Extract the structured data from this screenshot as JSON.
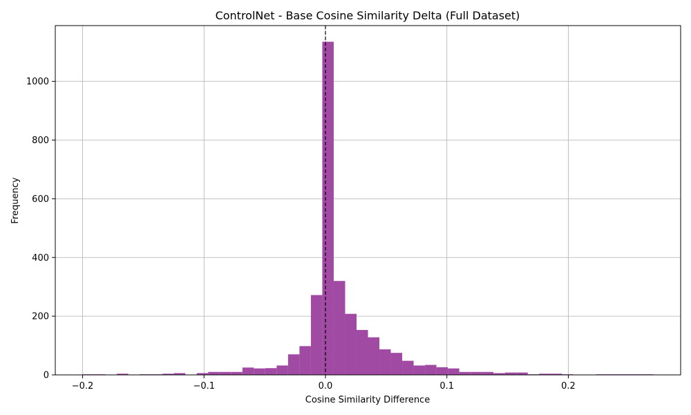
{
  "chart_data": {
    "type": "bar",
    "title": "ControlNet - Base Cosine Similarity Delta (Full Dataset)",
    "xlabel": "Cosine Similarity Difference",
    "ylabel": "Frequency",
    "xlim": [
      -0.2225,
      0.2925
    ],
    "ylim": [
      0,
      1190
    ],
    "grid": true,
    "bar_color": "#a04aa4",
    "reference_line_x": 0.0,
    "bin_width": 0.0094,
    "x_ticks": [
      {
        "value": -0.2,
        "label": "−0.2"
      },
      {
        "value": -0.1,
        "label": "−0.1"
      },
      {
        "value": 0.0,
        "label": "0.0"
      },
      {
        "value": 0.1,
        "label": "0.1"
      },
      {
        "value": 0.2,
        "label": "0.2"
      }
    ],
    "y_ticks": [
      {
        "value": 0,
        "label": "0"
      },
      {
        "value": 200,
        "label": "200"
      },
      {
        "value": 400,
        "label": "400"
      },
      {
        "value": 600,
        "label": "600"
      },
      {
        "value": 800,
        "label": "800"
      },
      {
        "value": 1000,
        "label": "1000"
      }
    ],
    "bins": [
      {
        "x0": -0.2,
        "count": 2
      },
      {
        "x0": -0.1906,
        "count": 2
      },
      {
        "x0": -0.1812,
        "count": 0
      },
      {
        "x0": -0.1718,
        "count": 4
      },
      {
        "x0": -0.1624,
        "count": 0
      },
      {
        "x0": -0.153,
        "count": 2
      },
      {
        "x0": -0.1436,
        "count": 2
      },
      {
        "x0": -0.1342,
        "count": 4
      },
      {
        "x0": -0.1248,
        "count": 6
      },
      {
        "x0": -0.1154,
        "count": 0
      },
      {
        "x0": -0.106,
        "count": 6
      },
      {
        "x0": -0.0966,
        "count": 10
      },
      {
        "x0": -0.0872,
        "count": 10
      },
      {
        "x0": -0.0778,
        "count": 10
      },
      {
        "x0": -0.0684,
        "count": 25
      },
      {
        "x0": -0.059,
        "count": 22
      },
      {
        "x0": -0.0496,
        "count": 23
      },
      {
        "x0": -0.0402,
        "count": 32
      },
      {
        "x0": -0.0308,
        "count": 70
      },
      {
        "x0": -0.0214,
        "count": 98
      },
      {
        "x0": -0.012,
        "count": 272
      },
      {
        "x0": -0.0026,
        "count": 1135
      },
      {
        "x0": 0.0068,
        "count": 320
      },
      {
        "x0": 0.0162,
        "count": 208
      },
      {
        "x0": 0.0256,
        "count": 153
      },
      {
        "x0": 0.035,
        "count": 128
      },
      {
        "x0": 0.0444,
        "count": 87
      },
      {
        "x0": 0.0538,
        "count": 75
      },
      {
        "x0": 0.0632,
        "count": 48
      },
      {
        "x0": 0.0726,
        "count": 32
      },
      {
        "x0": 0.082,
        "count": 34
      },
      {
        "x0": 0.0914,
        "count": 26
      },
      {
        "x0": 0.1008,
        "count": 22
      },
      {
        "x0": 0.1102,
        "count": 10
      },
      {
        "x0": 0.1196,
        "count": 10
      },
      {
        "x0": 0.129,
        "count": 10
      },
      {
        "x0": 0.1384,
        "count": 6
      },
      {
        "x0": 0.1478,
        "count": 8
      },
      {
        "x0": 0.1572,
        "count": 8
      },
      {
        "x0": 0.1666,
        "count": 2
      },
      {
        "x0": 0.176,
        "count": 4
      },
      {
        "x0": 0.1854,
        "count": 4
      },
      {
        "x0": 0.1948,
        "count": 2
      },
      {
        "x0": 0.2042,
        "count": 0
      },
      {
        "x0": 0.2136,
        "count": 0
      },
      {
        "x0": 0.223,
        "count": 2
      },
      {
        "x0": 0.2324,
        "count": 2
      },
      {
        "x0": 0.2418,
        "count": 2
      },
      {
        "x0": 0.2512,
        "count": 2
      },
      {
        "x0": 0.2606,
        "count": 2
      }
    ]
  }
}
